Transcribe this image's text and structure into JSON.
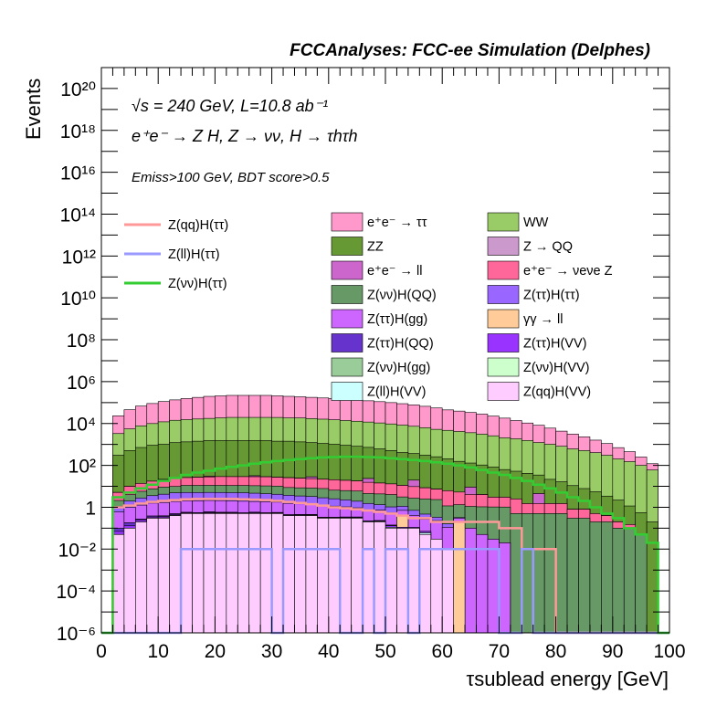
{
  "header": {
    "title": "FCCAnalyses: FCC-ee Simulation (Delphes)",
    "energy_line": "√s = 240 GeV, L=10.8 ab⁻¹",
    "process_line": "e⁺e⁻ → Z H, Z → νν, H → τhτh",
    "cuts_line": "Emiss>100 GeV, BDT score>0.5"
  },
  "chart_data": {
    "type": "area",
    "stacked": true,
    "xlabel": "τsublead energy [GeV]",
    "ylabel": "Events",
    "xlim": [
      0,
      100
    ],
    "ylim": [
      1e-06,
      1e+21
    ],
    "ylog": true,
    "bin_width": 2,
    "x_ticks": [
      "0",
      "10",
      "20",
      "30",
      "40",
      "50",
      "60",
      "70",
      "80",
      "90",
      "100"
    ],
    "y_ticks": [
      "10⁻⁶",
      "10⁻⁴",
      "10⁻²",
      "1",
      "10²",
      "10⁴",
      "10⁶",
      "10⁸",
      "10¹⁰",
      "10¹²",
      "10¹⁴",
      "10¹⁶",
      "10¹⁸",
      "10²⁰"
    ],
    "legend_placement": "top-center",
    "stack_series": [
      {
        "name": "Z(qq)H(VV)",
        "color": "#ffccff",
        "values": [
          0,
          0.05,
          0.1,
          0.2,
          0.3,
          0.3,
          0.4,
          0.5,
          0.5,
          0.5,
          0.5,
          0.5,
          0.5,
          0.5,
          0.5,
          0.5,
          0.4,
          0.4,
          0.4,
          0.3,
          0.3,
          0.3,
          0.3,
          0.2,
          0.2,
          0.1,
          0.1,
          0.1,
          0.05,
          0.03,
          0.01,
          0,
          0,
          0,
          0,
          0,
          0,
          0,
          0,
          0,
          0,
          0,
          0,
          0,
          0,
          0,
          0,
          0,
          0,
          0
        ]
      },
      {
        "name": "Z(ll)H(VV)",
        "color": "#ccffff",
        "values": [
          0,
          0,
          0,
          0,
          0,
          0.01,
          0.01,
          0.01,
          0,
          0.01,
          0.02,
          0.01,
          0,
          0.01,
          0.01,
          0.01,
          0,
          0.01,
          0.01,
          0,
          0.01,
          0.01,
          0.01,
          0,
          0.01,
          0.01,
          0,
          0,
          0.01,
          0,
          0,
          0,
          0,
          0,
          0,
          0,
          0,
          0,
          0,
          0,
          0,
          0,
          0,
          0,
          0,
          0,
          0,
          0,
          0,
          0
        ]
      },
      {
        "name": "Z(νν)H(VV)",
        "color": "#ccffcc",
        "values": [
          0,
          0,
          0,
          0,
          0,
          0,
          0,
          0,
          0,
          0,
          0,
          0,
          0,
          0,
          0,
          0,
          0,
          0,
          0,
          0,
          0,
          0,
          0,
          0,
          0,
          0,
          0,
          0,
          0,
          0,
          0,
          0,
          0,
          0,
          0,
          0,
          0,
          0,
          0,
          0,
          0,
          0,
          0,
          0,
          0,
          0,
          0,
          0,
          0,
          0
        ]
      },
      {
        "name": "Z(νν)H(gg)",
        "color": "#99cc99",
        "values": [
          0,
          0,
          0,
          0,
          0,
          0,
          0,
          0,
          0,
          0,
          0,
          0,
          0,
          0,
          0,
          0,
          0,
          0,
          0,
          0,
          0,
          0,
          0,
          0,
          0,
          0,
          0,
          0,
          0,
          0,
          0,
          0,
          0,
          0,
          0,
          0,
          0,
          0,
          0,
          0,
          0,
          0,
          0,
          0,
          0,
          0,
          0,
          0,
          0,
          0
        ]
      },
      {
        "name": "Z(ττ)H(VV)",
        "color": "#9933ff",
        "values": [
          0,
          0.02,
          0.03,
          0.05,
          0.04,
          0.05,
          0.03,
          0.04,
          0.02,
          0.05,
          0.03,
          0.03,
          0.02,
          0.04,
          0.02,
          0.03,
          0.02,
          0.03,
          0.02,
          0.02,
          0.01,
          0.02,
          0.02,
          0.01,
          0.01,
          0.02,
          0.01,
          0.01,
          0.01,
          0,
          0,
          0,
          0,
          0,
          0,
          0,
          0,
          0,
          0,
          0,
          0,
          0,
          0,
          0,
          0,
          0,
          0,
          0,
          0,
          0
        ]
      },
      {
        "name": "Z(ττ)H(QQ)",
        "color": "#6633cc",
        "values": [
          0,
          0.03,
          0.05,
          0.02,
          0.04,
          0.03,
          0.05,
          0.02,
          0.03,
          0.04,
          0.02,
          0.03,
          0.02,
          0.03,
          0.01,
          0.02,
          0.02,
          0.01,
          0.02,
          0.01,
          0.01,
          0.01,
          0.01,
          0.01,
          0.01,
          0.01,
          0,
          0,
          0,
          0,
          0,
          0,
          0,
          0,
          0,
          0,
          0,
          0,
          0,
          0,
          0,
          0,
          0,
          0,
          0,
          0,
          0,
          0,
          0,
          0
        ]
      },
      {
        "name": "γγ → ll",
        "color": "#ffcc99",
        "values": [
          0,
          0,
          0,
          0,
          0,
          0,
          0,
          0,
          0,
          0,
          0,
          0,
          0,
          0,
          0,
          0,
          0,
          0,
          0,
          0,
          0,
          0,
          0,
          0,
          0,
          0,
          0.3,
          0,
          0,
          0,
          0,
          0.2,
          0,
          0,
          0,
          0,
          0,
          0,
          0,
          0,
          0,
          0,
          0,
          0,
          0,
          0,
          0,
          0,
          0,
          0
        ]
      },
      {
        "name": "Z(ττ)H(gg)",
        "color": "#cc66ff",
        "values": [
          0,
          0.5,
          0.8,
          1,
          1.2,
          1.3,
          1.4,
          1.5,
          1.5,
          1.5,
          1.5,
          1.4,
          1.4,
          1.3,
          1.3,
          1.2,
          1.1,
          1,
          1,
          0.9,
          0.8,
          0.7,
          0.6,
          0.5,
          0.5,
          0.4,
          0.3,
          0.3,
          0.2,
          0.2,
          0.1,
          0.1,
          0.1,
          0.05,
          0.03,
          0.02,
          0,
          0,
          0,
          0,
          0,
          0,
          0,
          0,
          0,
          0,
          0,
          0,
          0,
          0
        ]
      },
      {
        "name": "Z(ττ)H(ττ)",
        "color": "#9966ff",
        "values": [
          0,
          0.5,
          1,
          1.5,
          2,
          2.5,
          3,
          3,
          3,
          3,
          3,
          3,
          3,
          2.8,
          2.6,
          2.4,
          2.2,
          2,
          1.8,
          1.6,
          1.4,
          1.2,
          1,
          0.8,
          0.6,
          0.5,
          0.4,
          0.3,
          0.2,
          0.1,
          0.05,
          0.02,
          0,
          0,
          0,
          0,
          0,
          0,
          0,
          0,
          0,
          0,
          0,
          0,
          0,
          0,
          0,
          0,
          0,
          0
        ]
      },
      {
        "name": "Z(νν)H(QQ)",
        "color": "#669966",
        "values": [
          0,
          1,
          2,
          3,
          4,
          5,
          5,
          6,
          6,
          6,
          6,
          6,
          6,
          6,
          6,
          6,
          5,
          5,
          5,
          5,
          4,
          4,
          4,
          3,
          3,
          3,
          2,
          2,
          2,
          2,
          1,
          1,
          1,
          1,
          1,
          1,
          0.5,
          0.5,
          0.5,
          0.5,
          0.5,
          0.3,
          0.3,
          0.2,
          0.2,
          0.1,
          0.1,
          0.05,
          0,
          0
        ]
      },
      {
        "name": "e⁺e⁻ → νeνe Z",
        "color": "#ff6699",
        "values": [
          0,
          3,
          6,
          8,
          10,
          12,
          14,
          15,
          16,
          17,
          18,
          18,
          18,
          18,
          18,
          17,
          17,
          16,
          15,
          14,
          14,
          13,
          12,
          11,
          10,
          9,
          8,
          7,
          6,
          5,
          5,
          4,
          3,
          3,
          2,
          2,
          2,
          1,
          1,
          1,
          1,
          0.5,
          0.5,
          0.3,
          0.2,
          0.1,
          0.05,
          0,
          0,
          0
        ]
      },
      {
        "name": "e⁺e⁻ → ll",
        "color": "#cc66cc",
        "values": [
          0,
          0,
          0,
          0,
          0,
          0,
          1,
          0,
          0,
          2,
          0,
          0,
          0,
          3,
          0,
          0,
          0,
          0,
          5,
          0,
          0,
          0,
          0,
          8,
          0,
          0,
          0,
          10,
          0,
          0,
          0,
          0,
          5,
          0,
          0,
          0,
          0,
          0,
          3,
          0,
          0,
          0,
          0,
          0,
          0,
          0,
          0,
          0,
          0,
          0
        ]
      },
      {
        "name": "Z → QQ",
        "color": "#cc99cc",
        "values": [
          0,
          0,
          0,
          0,
          0,
          0,
          0,
          0,
          0,
          0,
          0,
          0,
          0,
          0,
          0,
          0,
          0,
          0,
          0,
          0,
          0,
          0,
          0,
          0,
          0,
          0,
          0,
          0,
          0,
          0,
          0,
          0,
          0,
          0,
          0,
          0,
          0,
          0,
          0,
          0,
          0,
          0,
          0,
          0,
          0,
          0,
          0,
          0,
          0,
          0
        ]
      },
      {
        "name": "ZZ",
        "color": "#669933",
        "values": [
          0,
          300,
          500,
          700,
          900,
          1000,
          1200,
          1300,
          1400,
          1500,
          1500,
          1500,
          1500,
          1500,
          1500,
          1400,
          1400,
          1300,
          1200,
          1100,
          1000,
          900,
          800,
          700,
          600,
          500,
          400,
          350,
          300,
          250,
          200,
          150,
          120,
          100,
          80,
          60,
          50,
          40,
          30,
          20,
          15,
          10,
          7,
          5,
          3,
          2,
          1,
          0.5,
          0.2,
          0
        ]
      },
      {
        "name": "WW",
        "color": "#99cc66",
        "values": [
          0,
          3000,
          5000,
          7000,
          9000,
          11000,
          13000,
          14000,
          15000,
          16000,
          17000,
          18000,
          18000,
          18000,
          18000,
          18000,
          17000,
          17000,
          16000,
          15000,
          14000,
          13000,
          12000,
          11000,
          10000,
          9000,
          8000,
          7000,
          6000,
          5000,
          4500,
          4000,
          3500,
          3000,
          2500,
          2000,
          1800,
          1500,
          1200,
          1000,
          800,
          600,
          500,
          400,
          300,
          200,
          150,
          100,
          60,
          0
        ]
      },
      {
        "name": "e⁺e⁻ → ττ",
        "color": "#ff99cc",
        "values": [
          0,
          20000,
          40000,
          60000,
          80000,
          100000,
          120000,
          140000,
          160000,
          180000,
          190000,
          200000,
          200000,
          200000,
          200000,
          190000,
          180000,
          170000,
          160000,
          150000,
          140000,
          130000,
          120000,
          110000,
          100000,
          90000,
          80000,
          70000,
          60000,
          50000,
          40000,
          35000,
          30000,
          25000,
          20000,
          16000,
          12000,
          9000,
          7000,
          5000,
          3500,
          2500,
          1800,
          1200,
          800,
          500,
          300,
          150,
          60,
          0
        ]
      }
    ],
    "signal_series": [
      {
        "name": "Z(qq)H(ττ)",
        "color": "#ff9999",
        "values": [
          0,
          1,
          1.2,
          1.5,
          1.8,
          2,
          2.2,
          2.4,
          2.5,
          2.5,
          2.5,
          2.5,
          2.4,
          2.3,
          2.2,
          2,
          1.8,
          1.6,
          1.4,
          1.2,
          1,
          0.9,
          0.8,
          0.7,
          0.6,
          0.5,
          0.4,
          0.3,
          0.3,
          0.2,
          0.2,
          0.2,
          0.2,
          0.2,
          0.2,
          0.1,
          0.1,
          0.01,
          0.01,
          0.01,
          0,
          0,
          0,
          0,
          0,
          0,
          0,
          0,
          0,
          0
        ]
      },
      {
        "name": "Z(ll)H(ττ)",
        "color": "#9999ff",
        "values": [
          0,
          0,
          0,
          0,
          0,
          0,
          0,
          0.01,
          0.01,
          0.01,
          0.01,
          0.01,
          0.01,
          0.01,
          0.01,
          0,
          0.01,
          0.01,
          0.01,
          0.01,
          0.01,
          0,
          0,
          0.01,
          0,
          0.01,
          0.01,
          0,
          0.01,
          0.01,
          0.01,
          0.01,
          0.01,
          0.01,
          0.01,
          0,
          0,
          0.01,
          0,
          0,
          0,
          0,
          0,
          0,
          0,
          0,
          0,
          0,
          0,
          0
        ]
      },
      {
        "name": "Z(νν)H(ττ)",
        "color": "#33cc33",
        "values": [
          0,
          3,
          5,
          8,
          12,
          18,
          25,
          35,
          45,
          55,
          70,
          85,
          100,
          120,
          140,
          160,
          180,
          200,
          220,
          240,
          250,
          260,
          260,
          250,
          240,
          220,
          200,
          180,
          160,
          140,
          120,
          100,
          80,
          60,
          45,
          35,
          25,
          18,
          12,
          8,
          5,
          3,
          2,
          1,
          0.5,
          0.3,
          0.1,
          0.05,
          0.02,
          0
        ]
      }
    ]
  }
}
